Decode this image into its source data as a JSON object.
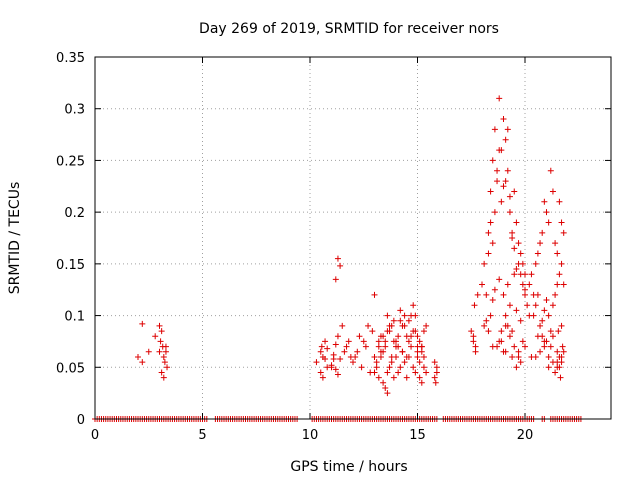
{
  "chart_data": {
    "type": "scatter",
    "title": "Day 269 of 2019, SRMTID for receiver nors",
    "xlabel": "GPS time / hours",
    "ylabel": "SRMTID / TECUs",
    "xlim": [
      0,
      24
    ],
    "ylim": [
      0,
      0.35
    ],
    "xticks": [
      0,
      5,
      10,
      15,
      20
    ],
    "xtick_labels": [
      "0",
      "5",
      "10",
      "15",
      "20"
    ],
    "yticks": [
      0,
      0.05,
      0.1,
      0.15,
      0.2,
      0.25,
      0.3,
      0.35
    ],
    "ytick_labels": [
      "0",
      "0.05",
      "0.1",
      "0.15",
      "0.2",
      "0.25",
      "0.3",
      "0.35"
    ],
    "grid": true,
    "marker": "+",
    "color": "#dd0000",
    "series": [
      {
        "name": "SRMTID",
        "x": [
          2.0,
          2.2,
          2.5,
          2.8,
          3.0,
          3.05,
          3.1,
          3.15,
          3.2,
          3.25,
          3.3,
          3.35,
          3.1,
          3.2,
          3.3,
          3.0,
          2.2,
          10.3,
          10.5,
          10.55,
          10.6,
          10.7,
          10.8,
          10.5,
          10.6,
          10.7,
          10.8,
          11.0,
          11.1,
          11.2,
          11.3,
          11.4,
          11.5,
          11.6,
          11.7,
          11.8,
          11.9,
          12.0,
          11.2,
          11.3,
          11.4,
          11.1,
          11.2,
          11.3,
          11.0,
          12.1,
          12.2,
          12.3,
          12.4,
          12.5,
          12.6,
          12.7,
          12.8,
          12.9,
          13.0,
          13.1,
          13.2,
          13.3,
          13.4,
          13.5,
          13.6,
          13.7,
          13.8,
          13.9,
          14.0,
          14.1,
          14.2,
          14.3,
          14.4,
          14.5,
          14.6,
          14.7,
          14.8,
          14.9,
          15.0,
          13.0,
          13.1,
          13.2,
          13.3,
          13.4,
          13.5,
          13.6,
          13.7,
          13.8,
          13.9,
          14.0,
          14.1,
          14.2,
          14.3,
          14.4,
          14.5,
          14.6,
          14.7,
          14.8,
          14.9,
          13.2,
          13.4,
          13.6,
          13.8,
          14.0,
          14.2,
          14.4,
          14.6,
          14.8,
          13.3,
          13.5,
          13.7,
          13.9,
          14.1,
          14.3,
          14.5,
          14.7,
          14.9,
          13.0,
          13.6,
          15.0,
          15.1,
          15.2,
          15.3,
          15.4,
          15.0,
          15.1,
          15.2,
          15.3,
          15.4,
          15.1,
          15.2,
          15.3,
          15.0,
          15.2,
          15.8,
          15.9,
          15.8,
          15.9,
          15.85,
          17.6,
          17.7,
          17.6,
          17.7,
          17.65,
          17.8,
          17.5,
          18.0,
          18.1,
          18.2,
          18.3,
          18.4,
          18.5,
          18.6,
          18.7,
          18.8,
          18.9,
          19.0,
          19.1,
          19.2,
          19.3,
          19.4,
          19.5,
          19.6,
          19.7,
          19.8,
          19.9,
          20.0,
          18.3,
          18.4,
          18.5,
          18.6,
          18.7,
          18.8,
          18.9,
          19.0,
          19.1,
          19.2,
          19.3,
          19.4,
          19.5,
          19.6,
          19.7,
          19.8,
          19.9,
          20.0,
          20.1,
          20.2,
          18.4,
          18.5,
          18.6,
          18.8,
          19.0,
          19.1,
          19.2,
          19.3,
          19.5,
          19.6,
          19.8,
          20.0,
          18.5,
          18.9,
          19.1,
          19.3,
          19.2,
          18.8,
          19.0,
          19.4,
          18.1,
          18.2,
          18.3,
          18.7,
          18.9,
          19.1,
          19.4,
          19.7,
          20.0,
          20.3,
          19.6,
          19.8,
          19.5,
          19.7,
          19.9,
          20.2,
          20.3,
          20.4,
          20.5,
          20.6,
          20.7,
          20.8,
          20.9,
          21.0,
          21.1,
          21.2,
          21.3,
          21.4,
          21.5,
          21.6,
          21.7,
          21.8,
          20.4,
          20.5,
          20.6,
          20.7,
          20.8,
          20.9,
          21.0,
          21.1,
          21.2,
          21.3,
          21.4,
          21.5,
          21.6,
          21.7,
          21.8,
          20.6,
          20.9,
          21.2,
          21.5,
          21.7,
          20.5,
          20.7,
          20.9,
          21.1,
          21.3,
          21.5,
          21.6,
          21.7,
          21.8,
          21.1,
          21.4,
          21.5,
          21.6,
          21.65,
          21.7,
          21.75,
          20.8,
          21.0,
          21.3,
          21.55
        ],
        "y": [
          0.06,
          0.055,
          0.065,
          0.08,
          0.09,
          0.075,
          0.085,
          0.07,
          0.06,
          0.055,
          0.065,
          0.05,
          0.045,
          0.04,
          0.07,
          0.065,
          0.092,
          0.055,
          0.065,
          0.07,
          0.06,
          0.075,
          0.05,
          0.045,
          0.04,
          0.058,
          0.068,
          0.05,
          0.062,
          0.072,
          0.08,
          0.058,
          0.09,
          0.065,
          0.07,
          0.075,
          0.06,
          0.055,
          0.135,
          0.155,
          0.148,
          0.058,
          0.048,
          0.043,
          0.052,
          0.06,
          0.065,
          0.08,
          0.05,
          0.075,
          0.07,
          0.09,
          0.045,
          0.085,
          0.06,
          0.055,
          0.075,
          0.08,
          0.065,
          0.07,
          0.1,
          0.09,
          0.06,
          0.075,
          0.07,
          0.08,
          0.095,
          0.065,
          0.09,
          0.06,
          0.075,
          0.08,
          0.085,
          0.1,
          0.07,
          0.045,
          0.05,
          0.04,
          0.06,
          0.035,
          0.03,
          0.045,
          0.05,
          0.055,
          0.04,
          0.06,
          0.045,
          0.05,
          0.065,
          0.055,
          0.04,
          0.06,
          0.07,
          0.05,
          0.045,
          0.07,
          0.08,
          0.085,
          0.09,
          0.075,
          0.105,
          0.1,
          0.095,
          0.11,
          0.065,
          0.075,
          0.085,
          0.095,
          0.07,
          0.09,
          0.08,
          0.1,
          0.085,
          0.12,
          0.025,
          0.08,
          0.075,
          0.07,
          0.085,
          0.09,
          0.06,
          0.055,
          0.065,
          0.05,
          0.045,
          0.04,
          0.035,
          0.06,
          0.065,
          0.07,
          0.055,
          0.045,
          0.04,
          0.05,
          0.035,
          0.08,
          0.07,
          0.075,
          0.065,
          0.11,
          0.12,
          0.085,
          0.13,
          0.15,
          0.12,
          0.16,
          0.22,
          0.25,
          0.28,
          0.23,
          0.26,
          0.21,
          0.29,
          0.27,
          0.24,
          0.2,
          0.18,
          0.22,
          0.19,
          0.17,
          0.16,
          0.15,
          0.14,
          0.18,
          0.19,
          0.17,
          0.2,
          0.24,
          0.31,
          0.26,
          0.225,
          0.23,
          0.28,
          0.215,
          0.175,
          0.165,
          0.145,
          0.15,
          0.14,
          0.13,
          0.12,
          0.11,
          0.1,
          0.1,
          0.115,
          0.125,
          0.135,
          0.12,
          0.1,
          0.13,
          0.11,
          0.14,
          0.105,
          0.095,
          0.125,
          0.07,
          0.085,
          0.09,
          0.08,
          0.09,
          0.075,
          0.065,
          0.085,
          0.09,
          0.095,
          0.085,
          0.07,
          0.075,
          0.065,
          0.06,
          0.065,
          0.07,
          0.06,
          0.05,
          0.055,
          0.07,
          0.06,
          0.075,
          0.13,
          0.14,
          0.12,
          0.15,
          0.16,
          0.17,
          0.18,
          0.21,
          0.2,
          0.19,
          0.24,
          0.22,
          0.17,
          0.16,
          0.21,
          0.19,
          0.18,
          0.1,
          0.11,
          0.12,
          0.09,
          0.095,
          0.105,
          0.115,
          0.1,
          0.085,
          0.11,
          0.12,
          0.13,
          0.14,
          0.15,
          0.13,
          0.08,
          0.075,
          0.07,
          0.065,
          0.09,
          0.06,
          0.065,
          0.07,
          0.06,
          0.055,
          0.05,
          0.06,
          0.055,
          0.065,
          0.05,
          0.045,
          0.055,
          0.05,
          0.04,
          0.06,
          0.07,
          0.08,
          0.075,
          0.08,
          0.085
        ]
      },
      {
        "name": "zero-baseline",
        "x_start": 0.0,
        "x_end": 22.6,
        "step": 0.1,
        "gaps": [
          [
            5.2,
            5.5
          ],
          [
            9.4,
            10.0
          ],
          [
            15.9,
            16.1
          ],
          [
            20.5,
            20.8
          ],
          [
            21.0,
            21.2
          ]
        ],
        "y": 0
      }
    ]
  }
}
